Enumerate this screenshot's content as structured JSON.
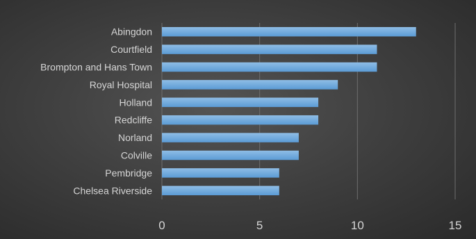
{
  "chart_data": {
    "type": "bar",
    "orientation": "horizontal",
    "categories": [
      "Abingdon",
      "Courtfield",
      "Brompton and Hans Town",
      "Royal Hospital",
      "Holland",
      "Redcliffe",
      "Norland",
      "Colville",
      "Pembridge",
      "Chelsea Riverside"
    ],
    "values": [
      13,
      11,
      11,
      9,
      8,
      8,
      7,
      7,
      6,
      6
    ],
    "title": "",
    "xlabel": "",
    "ylabel": "",
    "xlim": [
      0,
      15
    ],
    "x_ticks": [
      "0",
      "5",
      "10",
      "15"
    ],
    "grid": true,
    "legend": "none"
  },
  "colors": {
    "bar": "#5b9bd5",
    "bar_highlight": "#8fbde6",
    "grid": "#6e6e6e",
    "text": "#d6d6d6"
  }
}
